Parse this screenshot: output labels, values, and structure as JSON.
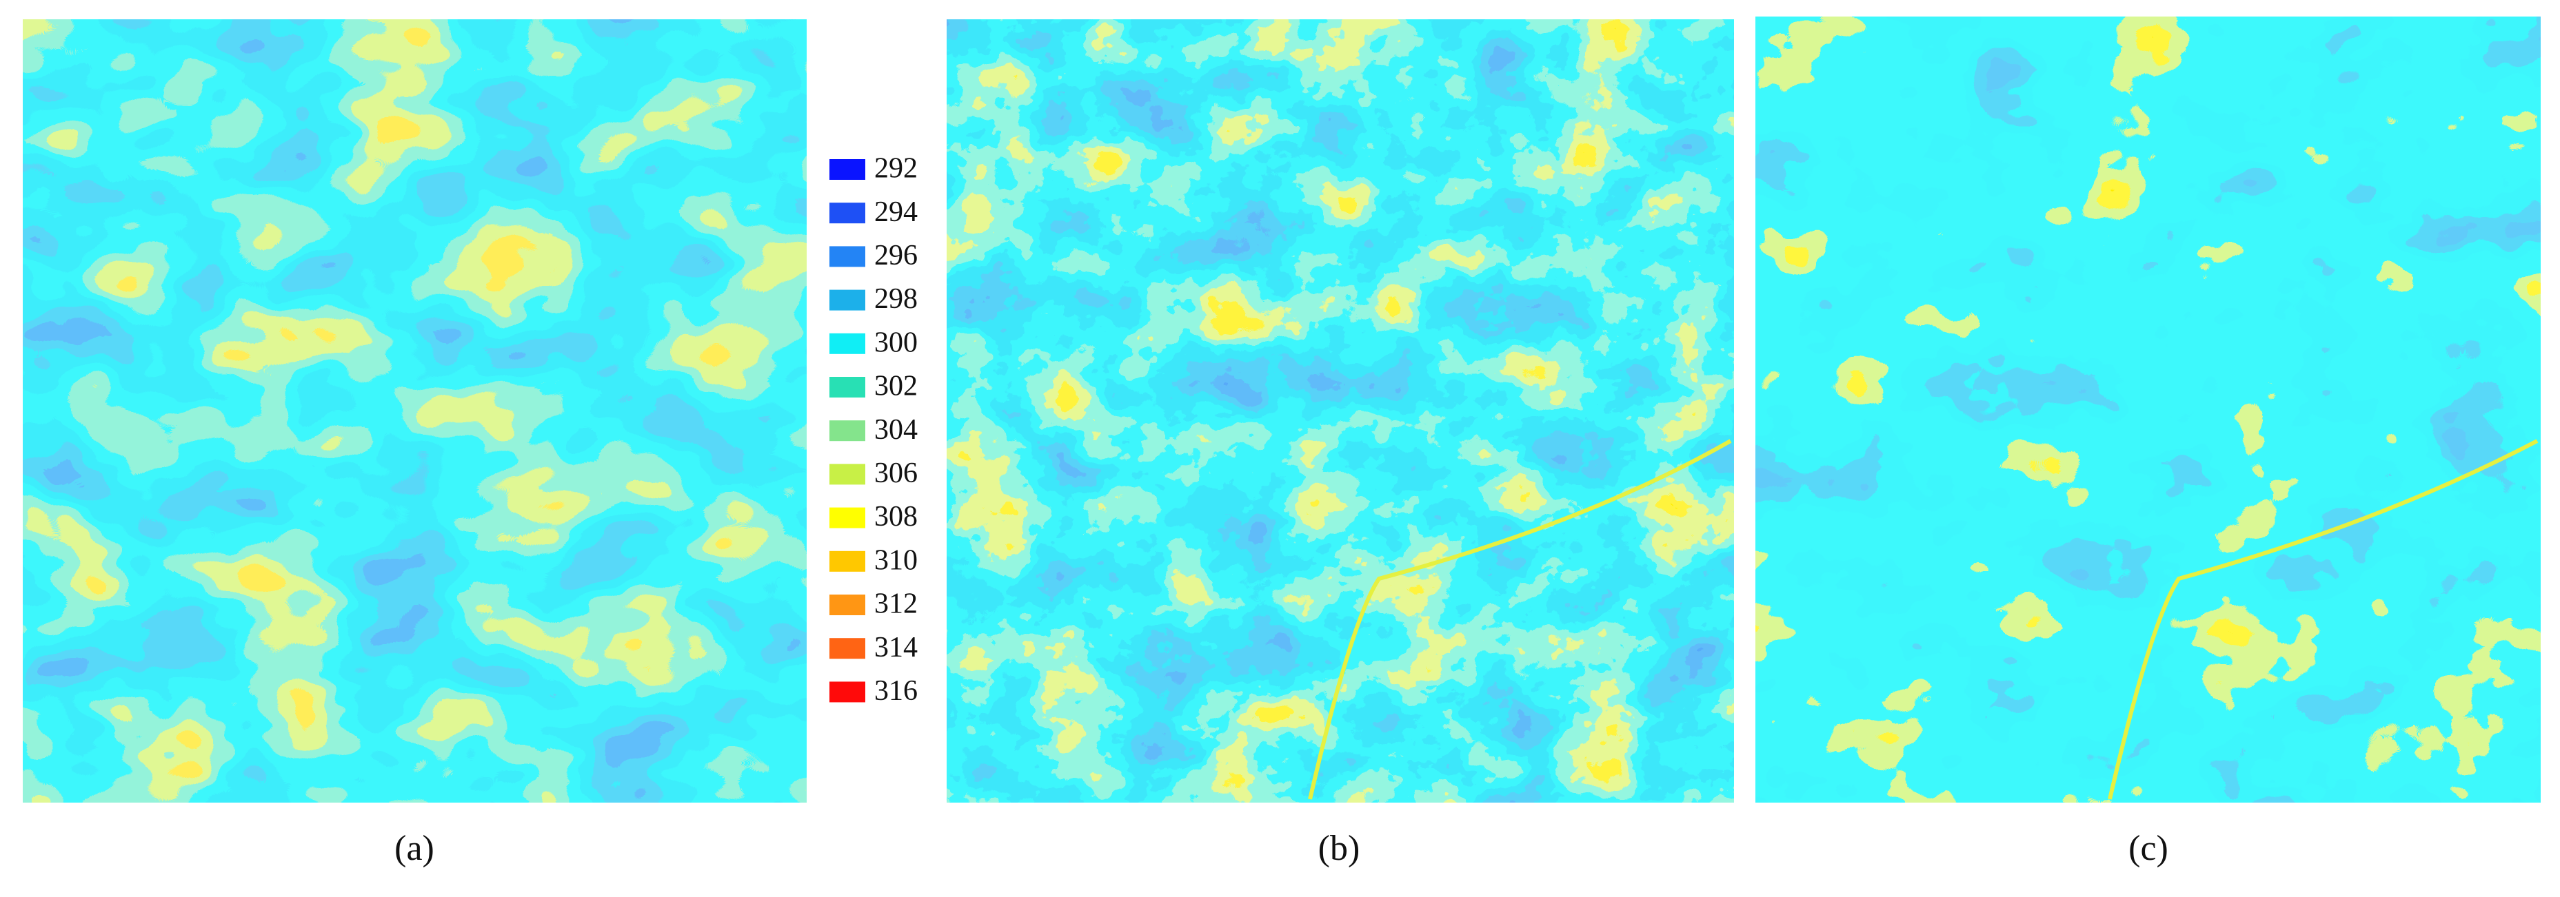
{
  "legend": {
    "entries": [
      {
        "label": 292,
        "color": "#0a14ff"
      },
      {
        "label": 294,
        "color": "#1e50f5"
      },
      {
        "label": 296,
        "color": "#2384f5"
      },
      {
        "label": 298,
        "color": "#1cb0ea"
      },
      {
        "label": 300,
        "color": "#10eef5"
      },
      {
        "label": 302,
        "color": "#28e0b4"
      },
      {
        "label": 304,
        "color": "#84e48c"
      },
      {
        "label": 306,
        "color": "#c8f046"
      },
      {
        "label": 308,
        "color": "#ffff00"
      },
      {
        "label": 310,
        "color": "#ffc800"
      },
      {
        "label": 312,
        "color": "#ff9614"
      },
      {
        "label": 314,
        "color": "#ff6414"
      },
      {
        "label": 316,
        "color": "#ff0a0a"
      }
    ]
  },
  "panels": [
    {
      "caption": "(a)"
    },
    {
      "caption": "(b)"
    },
    {
      "caption": "(c)"
    }
  ]
}
